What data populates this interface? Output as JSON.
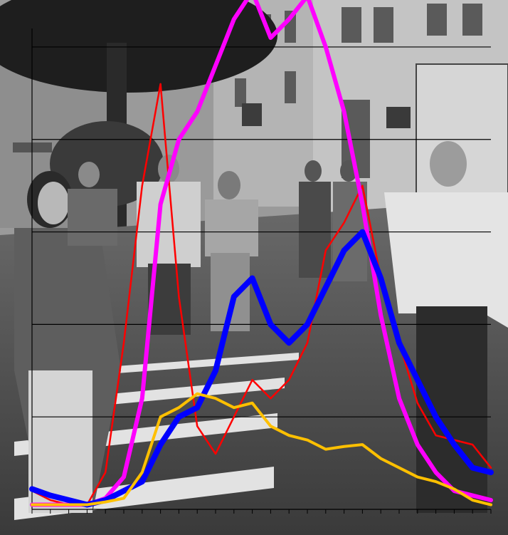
{
  "scene": {
    "description_icon": "street-crowd-photo",
    "photo_tone": "grayscale",
    "overlay_colors": {
      "red": "#ff0000",
      "magenta": "#ff00ff",
      "blue": "#0000ff",
      "yellow": "#ffc000"
    }
  },
  "chart_data": {
    "type": "line",
    "x": [
      0,
      1,
      2,
      3,
      4,
      5,
      6,
      7,
      8,
      9,
      10,
      11,
      12,
      13,
      14,
      15,
      16,
      17,
      18,
      19,
      20,
      21,
      22,
      23,
      24,
      25
    ],
    "ylim": [
      0,
      520
    ],
    "grid": true,
    "series": [
      {
        "color": "#ff0000",
        "values": [
          20,
          10,
          5,
          5,
          40,
          180,
          350,
          460,
          230,
          90,
          60,
          100,
          140,
          120,
          140,
          180,
          280,
          310,
          350,
          250,
          180,
          115,
          80,
          75,
          70,
          45
        ]
      },
      {
        "color": "#ff00ff",
        "values": [
          5,
          5,
          5,
          5,
          12,
          35,
          120,
          330,
          400,
          430,
          480,
          530,
          560,
          510,
          530,
          555,
          500,
          430,
          330,
          210,
          120,
          70,
          40,
          20,
          15,
          10
        ]
      },
      {
        "color": "#0000ff",
        "values": [
          22,
          15,
          10,
          5,
          10,
          20,
          30,
          70,
          100,
          110,
          150,
          230,
          250,
          200,
          180,
          200,
          240,
          280,
          300,
          250,
          180,
          140,
          100,
          70,
          45,
          40
        ]
      },
      {
        "color": "#ffc000",
        "values": [
          5,
          5,
          5,
          5,
          8,
          12,
          40,
          100,
          110,
          125,
          120,
          110,
          115,
          90,
          80,
          75,
          65,
          68,
          70,
          55,
          45,
          35,
          30,
          22,
          10,
          5
        ]
      }
    ]
  }
}
